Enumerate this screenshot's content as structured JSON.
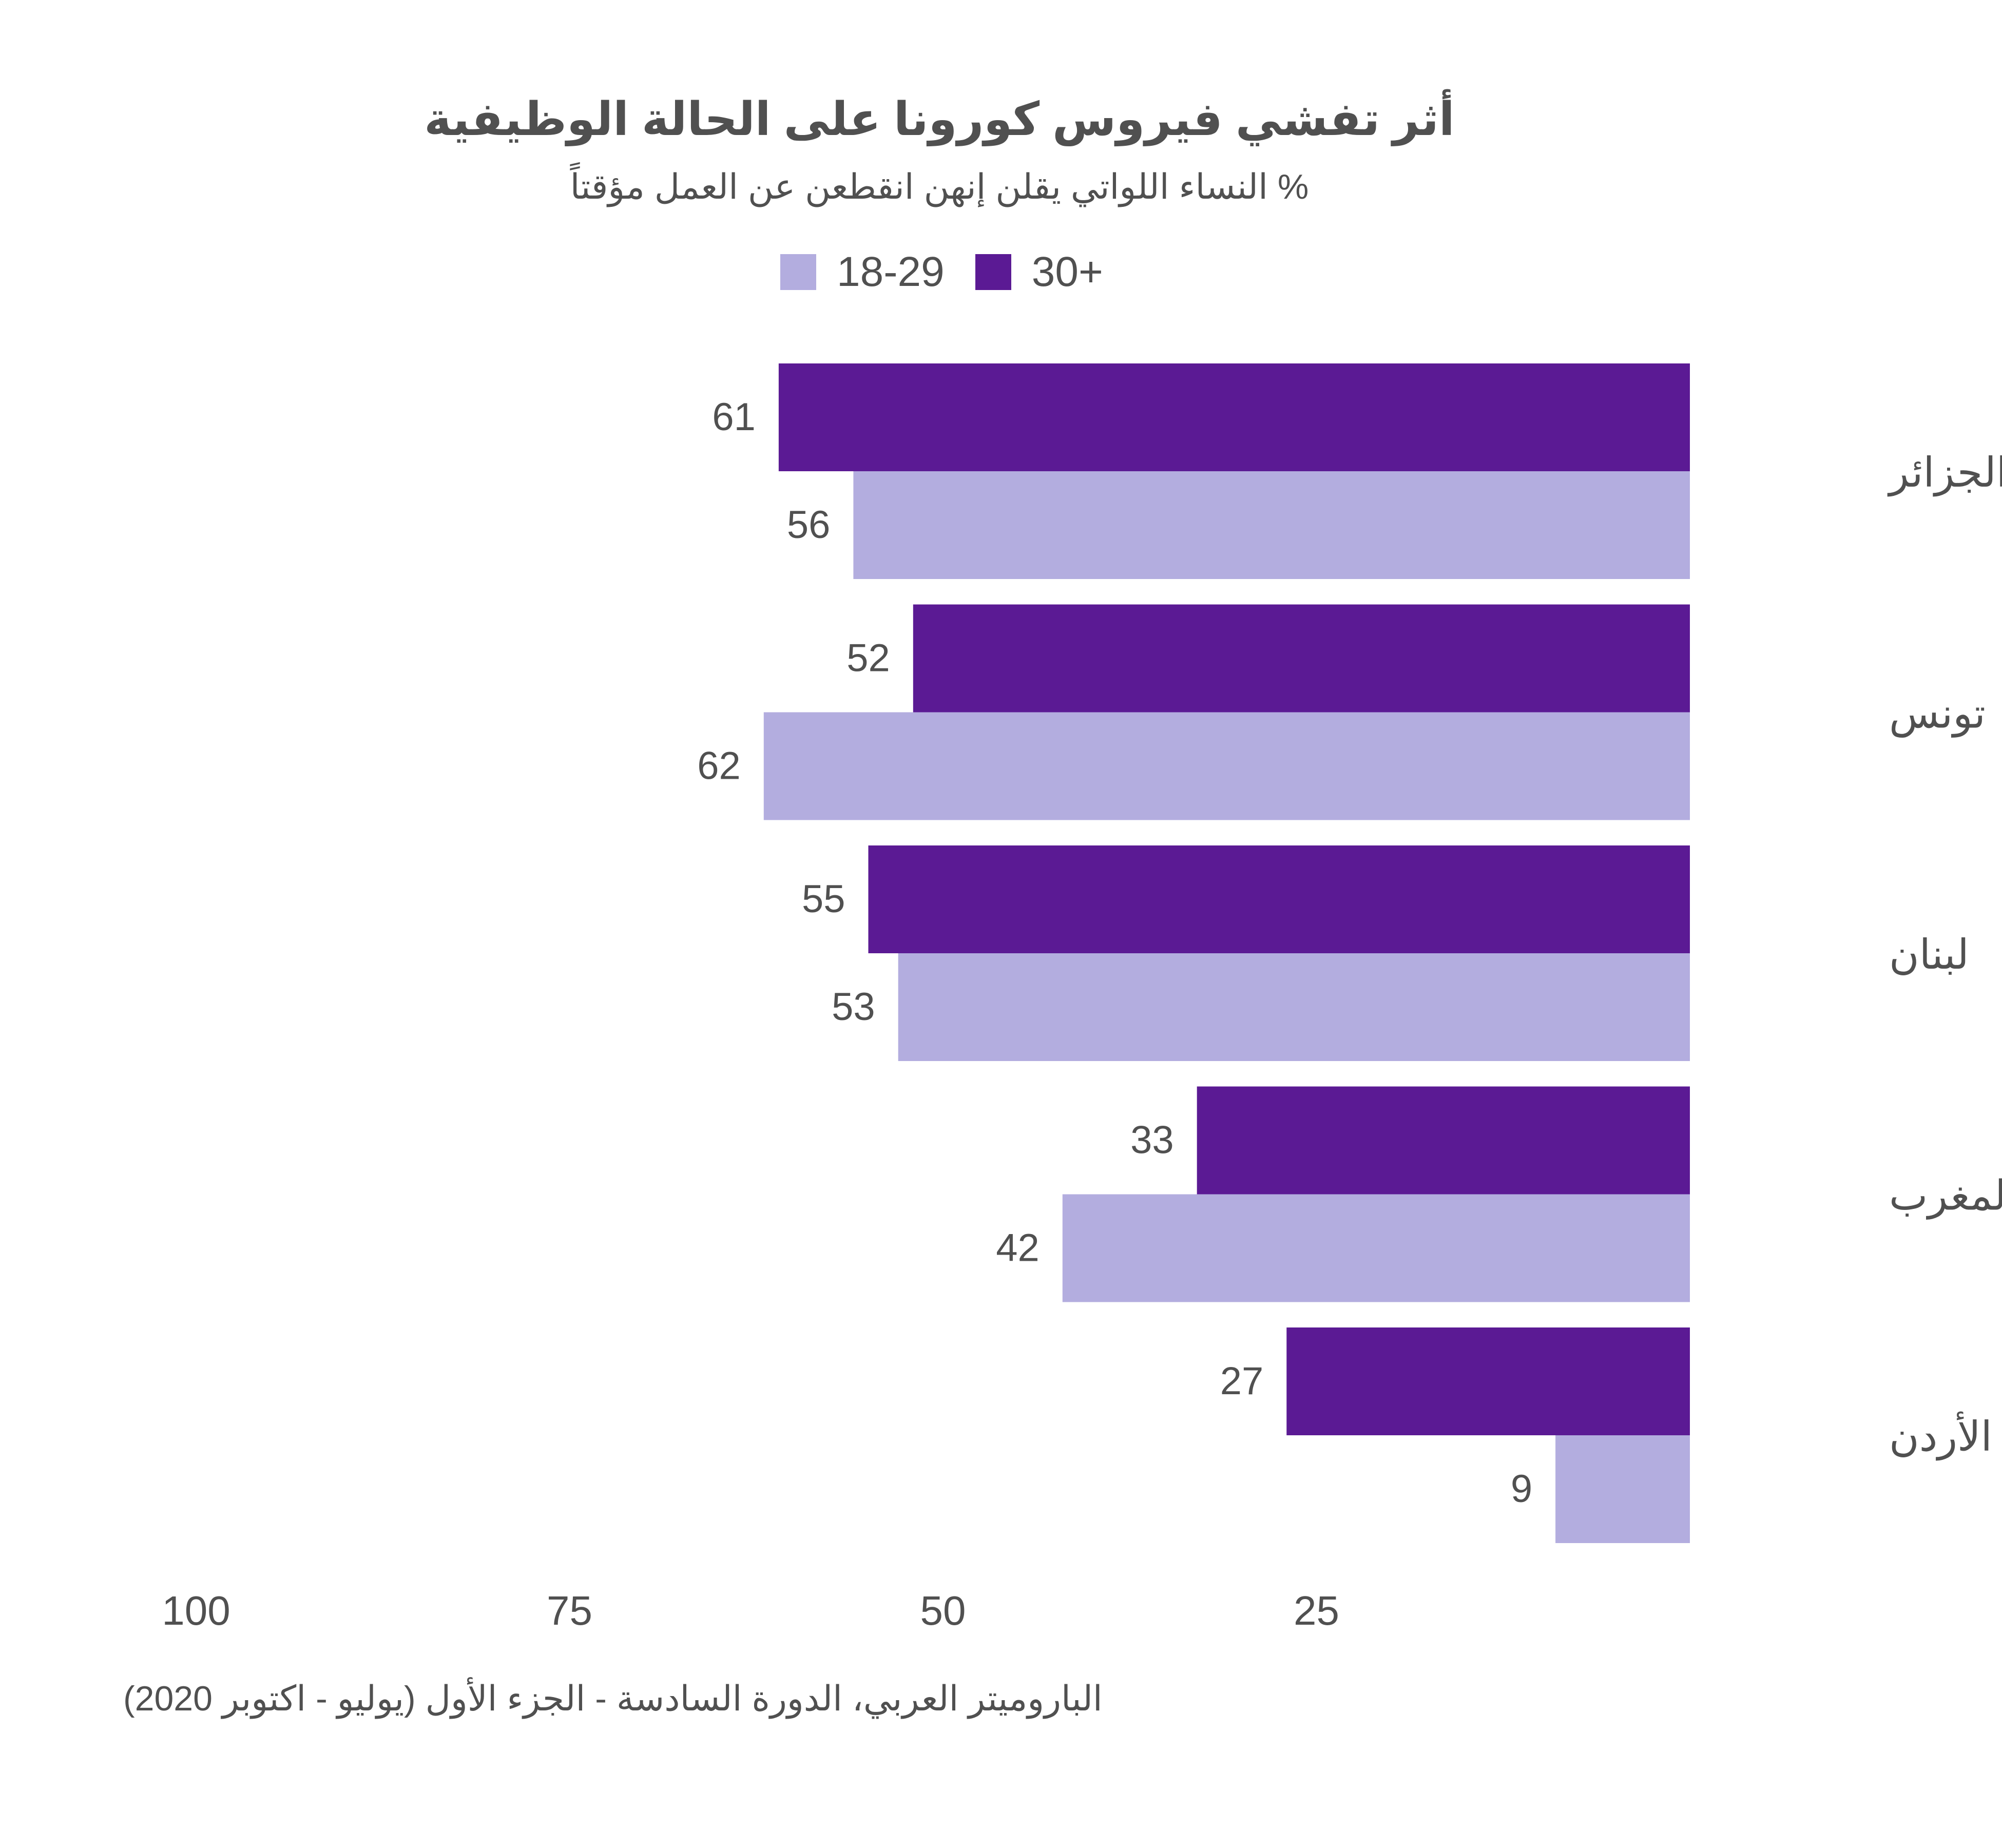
{
  "chart_data": {
    "type": "bar",
    "orientation": "horizontal",
    "title": "أثر تفشي فيروس كورونا على الحالة الوظيفية",
    "subtitle": "% النساء اللواتي يقلن إنهن انقطعن عن العمل مؤقتاً",
    "categories": [
      "الجزائر",
      "تونس",
      "لبنان",
      "المغرب",
      "الأردن"
    ],
    "series": [
      {
        "name": "30+",
        "color": "#5b1a94",
        "values": [
          61,
          52,
          55,
          33,
          27
        ]
      },
      {
        "name": "18-29",
        "color": "#b3addf",
        "values": [
          56,
          62,
          53,
          42,
          9
        ]
      }
    ],
    "x_ticks": [
      100,
      75,
      50,
      25
    ],
    "xlim": [
      0,
      100
    ],
    "axis_direction": "reversed",
    "legend_position": "top-center",
    "grid": false,
    "source": "الباروميتر العربي، الدورة السادسة - الجزء الأول (يوليو - اكتوبر 2020)"
  }
}
